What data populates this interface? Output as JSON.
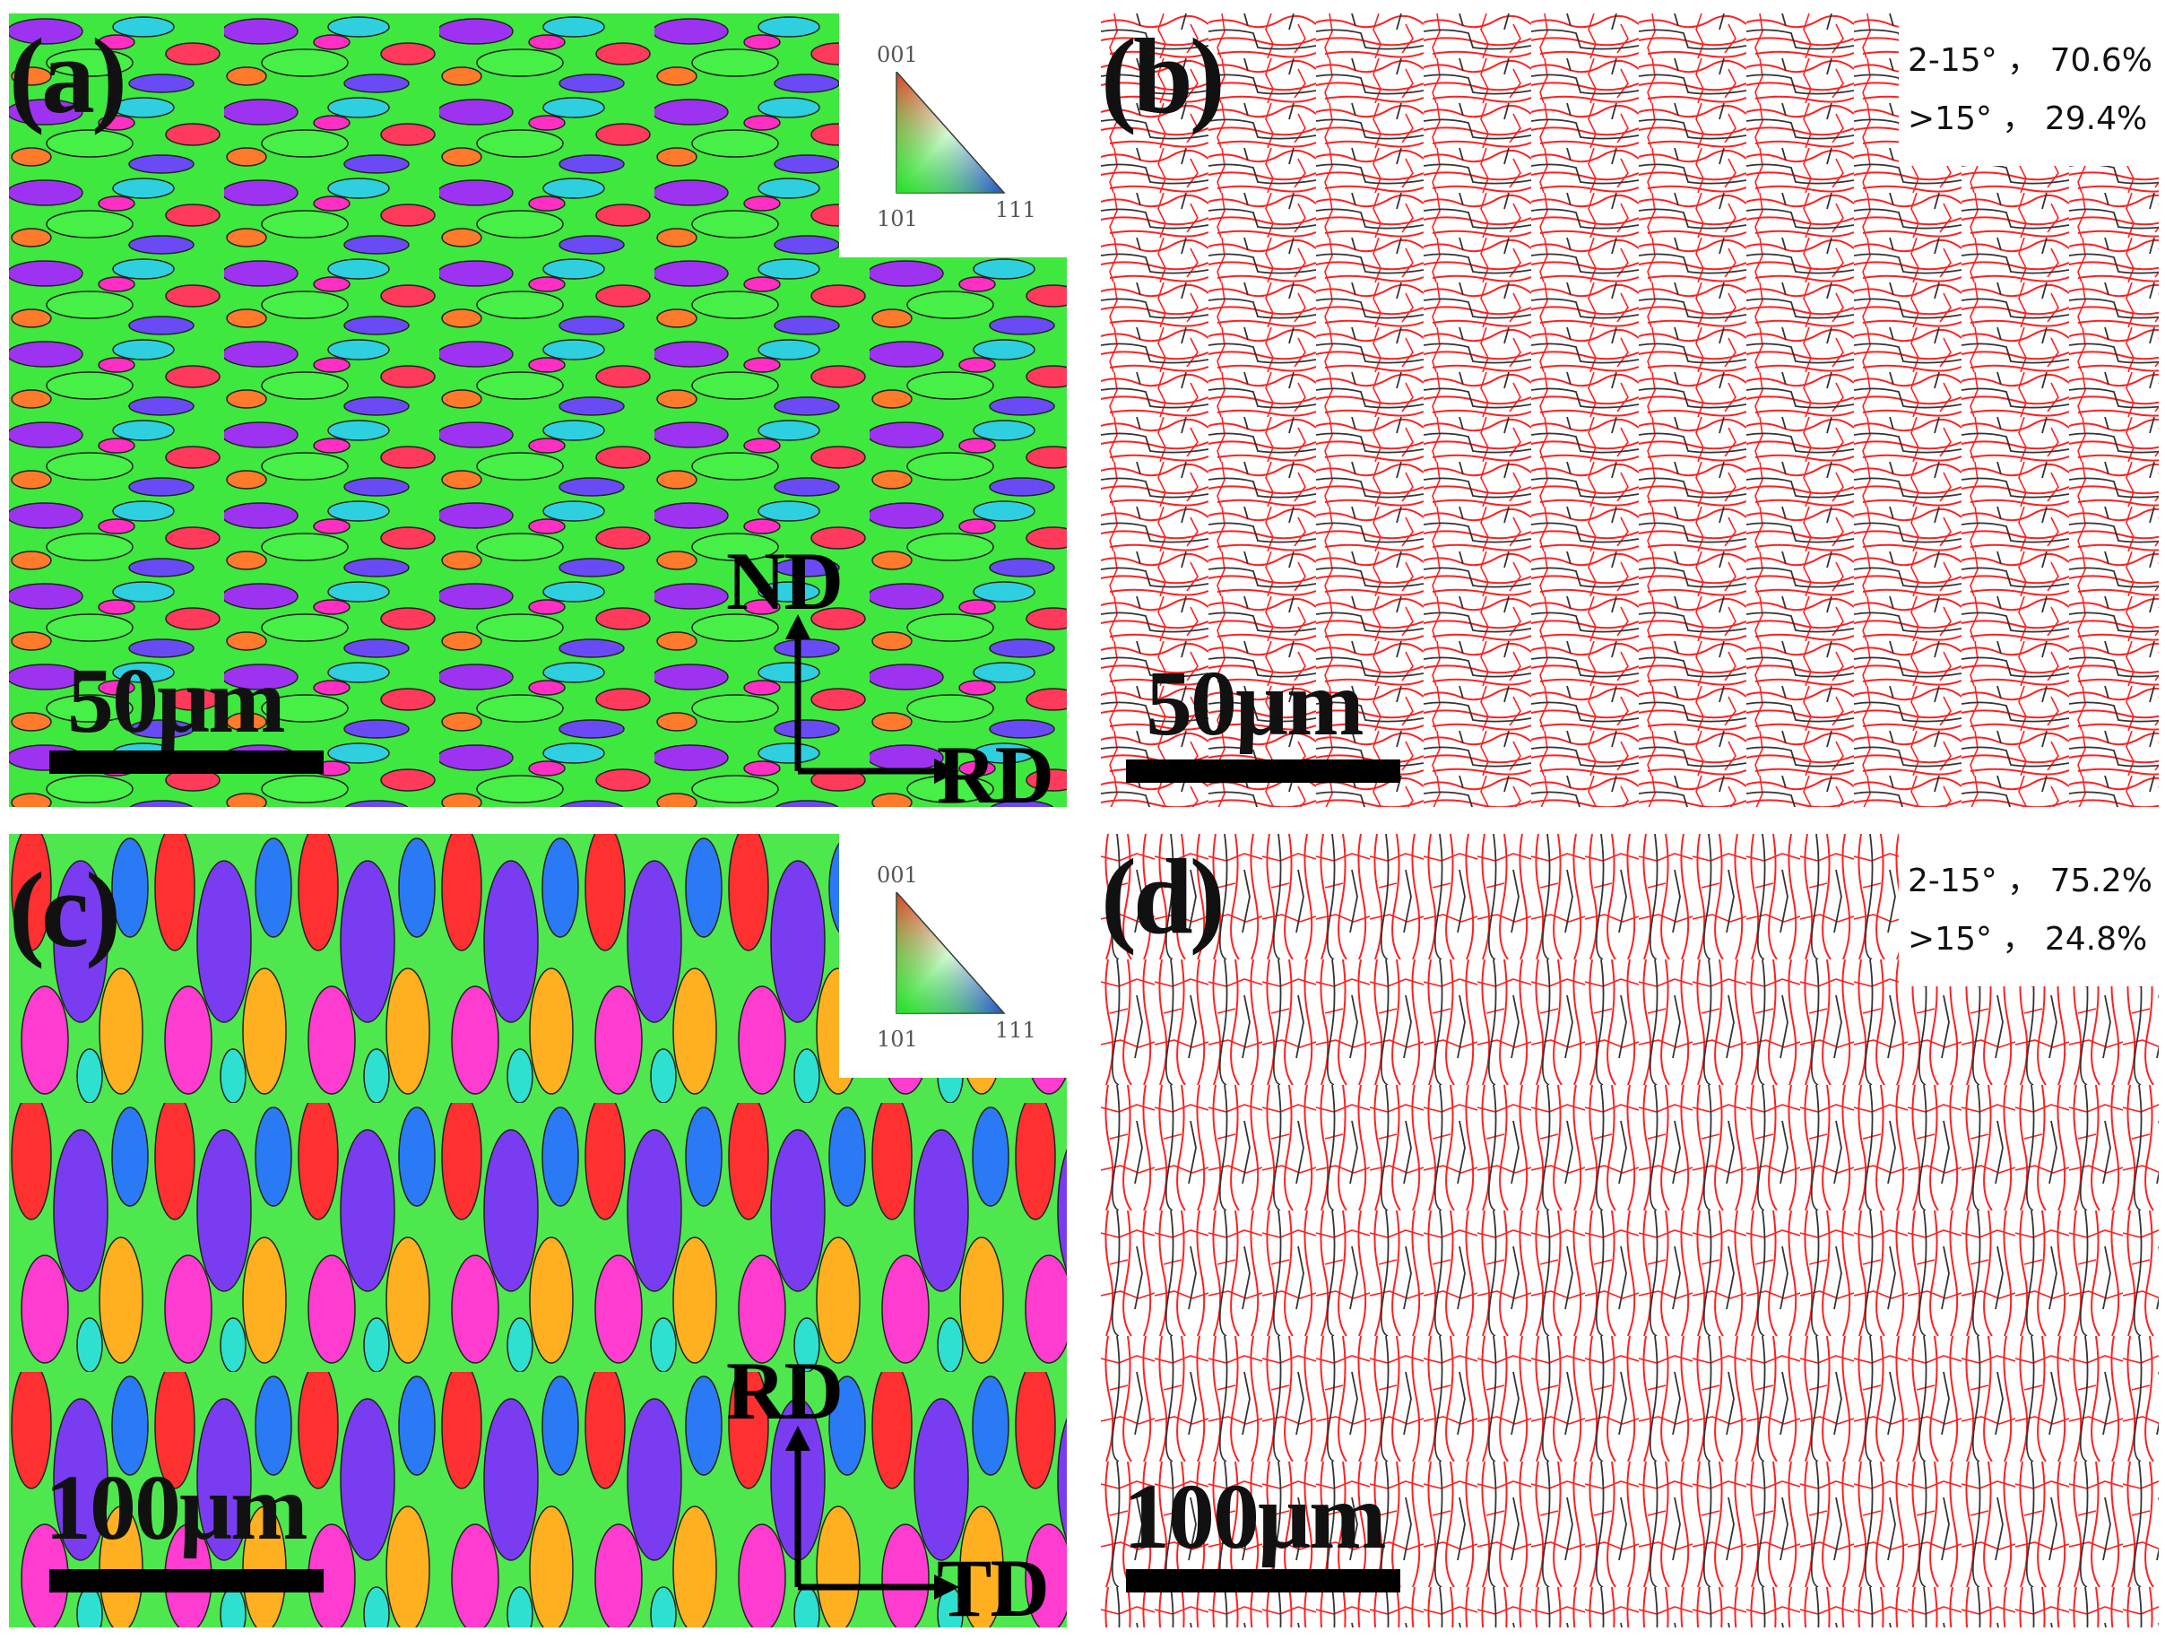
{
  "panels": {
    "a": {
      "label": "(a)",
      "scale": "50μm",
      "axes": {
        "vertical": "ND",
        "horizontal": "RD"
      },
      "ipf": {
        "top": "001",
        "bottom_left": "101",
        "bottom_right": "111"
      }
    },
    "b": {
      "label": "(b)",
      "scale": "50μm",
      "stats": [
        "2-15°  ，  70.6%",
        ">15°  ，  29.4%"
      ]
    },
    "c": {
      "label": "(c)",
      "scale": "100μm",
      "axes": {
        "vertical": "RD",
        "horizontal": "TD"
      },
      "ipf": {
        "top": "001",
        "bottom_left": "101",
        "bottom_right": "111"
      }
    },
    "d": {
      "label": "(d)",
      "scale": "100μm",
      "stats": [
        "2-15°  ，  75.2%",
        ">15°  ，  24.8%"
      ]
    }
  },
  "colors": {
    "low_angle_boundary": "#ff2020",
    "high_angle_boundary": "#333333",
    "ipf_001": "#ff2020",
    "ipf_101": "#22dd22",
    "ipf_111": "#2233ee"
  }
}
